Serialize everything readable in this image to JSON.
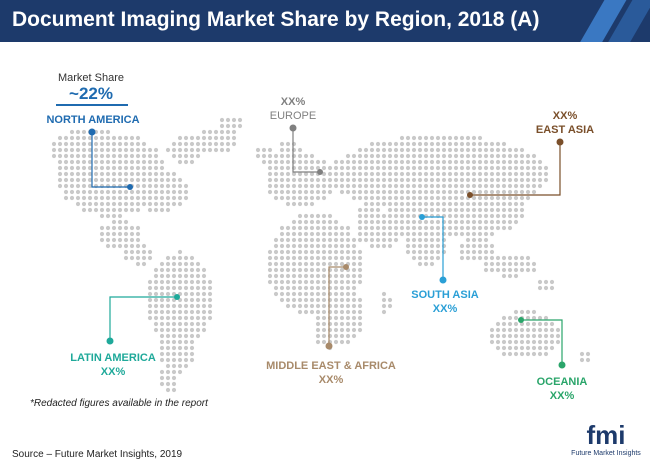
{
  "title": "Document Imaging Market Share by Region, 2018 (A)",
  "market_share": {
    "label": "Market Share",
    "value": "~22%"
  },
  "regions": {
    "north_america": {
      "name": "NORTH AMERICA",
      "value": "",
      "color": "#1f6bb0"
    },
    "europe": {
      "name": "EUROPE",
      "value": "XX%",
      "color": "#808080"
    },
    "east_asia": {
      "name": "EAST ASIA",
      "value": "XX%",
      "color": "#7a4f2a"
    },
    "south_asia": {
      "name": "SOUTH ASIA",
      "value": "XX%",
      "color": "#2a9fd6"
    },
    "latin_america": {
      "name": "LATIN AMERICA",
      "value": "XX%",
      "color": "#1fa99a"
    },
    "middle_east_africa": {
      "name": "MIDDLE EAST & AFRICA",
      "value": "XX%",
      "color": "#a88a6a"
    },
    "oceania": {
      "name": "OCEANIA",
      "value": "XX%",
      "color": "#2aa56a"
    }
  },
  "footnote": "*Redacted figures available in the report",
  "source": "Source – Future Market Insights, 2019",
  "logo": {
    "text": "fmi",
    "subtitle": "Future Market Insights"
  },
  "colors": {
    "header_bg": "#1d3a6b",
    "map_dot": "#c9c9c9",
    "stripe_light": "#3a78c2",
    "stripe_dark": "#2a5a9a"
  }
}
